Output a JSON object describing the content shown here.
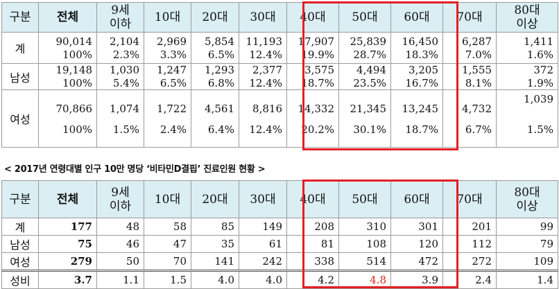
{
  "headers": [
    "구분",
    "전체",
    "9세 이하",
    "10대",
    "20대",
    "30대",
    "40대",
    "50대",
    "60대",
    "70대",
    "80대 이상"
  ],
  "table1": {
    "rows": [
      {
        "label": "계",
        "counts": [
          "90,014",
          "2,104",
          "2,969",
          "5,854",
          "11,193",
          "17,907",
          "25,839",
          "16,450",
          "6,287",
          "1,411"
        ],
        "shares": [
          "100%",
          "2.3%",
          "3.3%",
          "6.5%",
          "12.4%",
          "19.9%",
          "28.7%",
          "18.3%",
          "7.0%",
          "1.6%"
        ]
      },
      {
        "label": "남성",
        "counts": [
          "19,148",
          "1,030",
          "1,247",
          "1,293",
          "2,377",
          "3,575",
          "4,494",
          "3,205",
          "1,555",
          "372"
        ],
        "shares": [
          "100%",
          "5.4%",
          "6.5%",
          "6.8%",
          "12.4%",
          "18.7%",
          "23.5%",
          "16.7%",
          "8.1%",
          "1.9%"
        ]
      },
      {
        "label": "여성",
        "counts": [
          "70,866",
          "1,074",
          "1,722",
          "4,561",
          "8,816",
          "14,332",
          "21,345",
          "13,245",
          "4,732",
          "1,039"
        ],
        "shares": [
          "100%",
          "1.5%",
          "2.4%",
          "6.4%",
          "12.4%",
          "20.2%",
          "30.1%",
          "18.7%",
          "6.7%",
          "1.5%"
        ]
      }
    ]
  },
  "caption": "< 2017년 연령대별 인구 10만 명당 ‘비타민D결핍’ 진료인원 현황 >",
  "table2": {
    "rows": [
      {
        "label": "계",
        "values": [
          "177",
          "48",
          "58",
          "85",
          "149",
          "208",
          "310",
          "301",
          "201",
          "99"
        ]
      },
      {
        "label": "남성",
        "values": [
          "75",
          "46",
          "47",
          "35",
          "61",
          "81",
          "108",
          "120",
          "112",
          "79"
        ]
      },
      {
        "label": "여성",
        "values": [
          "279",
          "50",
          "70",
          "141",
          "242",
          "338",
          "514",
          "472",
          "272",
          "109"
        ]
      },
      {
        "label": "성비",
        "values": [
          "3.7",
          "1.1",
          "1.5",
          "4.0",
          "4.0",
          "4.2",
          "4.8",
          "3.9",
          "2.4",
          "1.4"
        ]
      }
    ]
  },
  "highlight": {
    "box_color": "#e31e24",
    "text_color": "#e2241b",
    "highlighted_columns": [
      "40대",
      "50대",
      "60대"
    ],
    "highlighted_value": "4.8"
  }
}
